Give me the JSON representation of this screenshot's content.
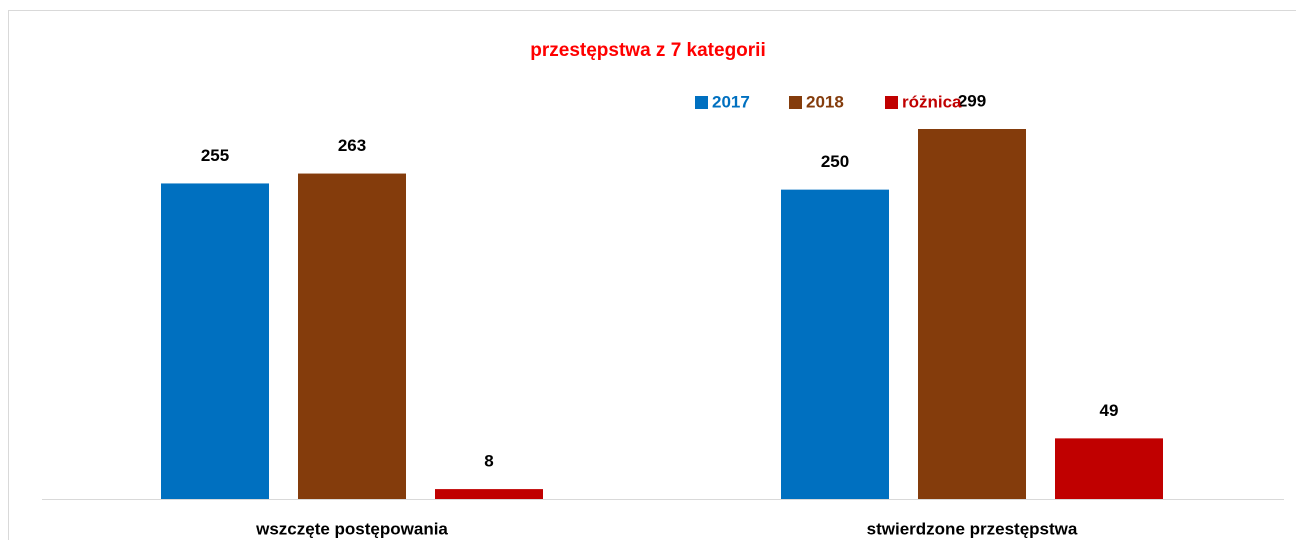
{
  "chart_data": {
    "type": "bar",
    "title": "przestępstwa z 7 kategorii",
    "categories": [
      "wszczęte postępowania",
      "stwierdzone przestępstwa"
    ],
    "series": [
      {
        "name": "2017",
        "color": "#0070c0",
        "values": [
          255,
          250
        ]
      },
      {
        "name": "2018",
        "color": "#843c0c",
        "values": [
          263,
          299
        ]
      },
      {
        "name": "różnica",
        "color": "#c00000",
        "values": [
          8,
          49
        ]
      }
    ],
    "legend": "top"
  }
}
